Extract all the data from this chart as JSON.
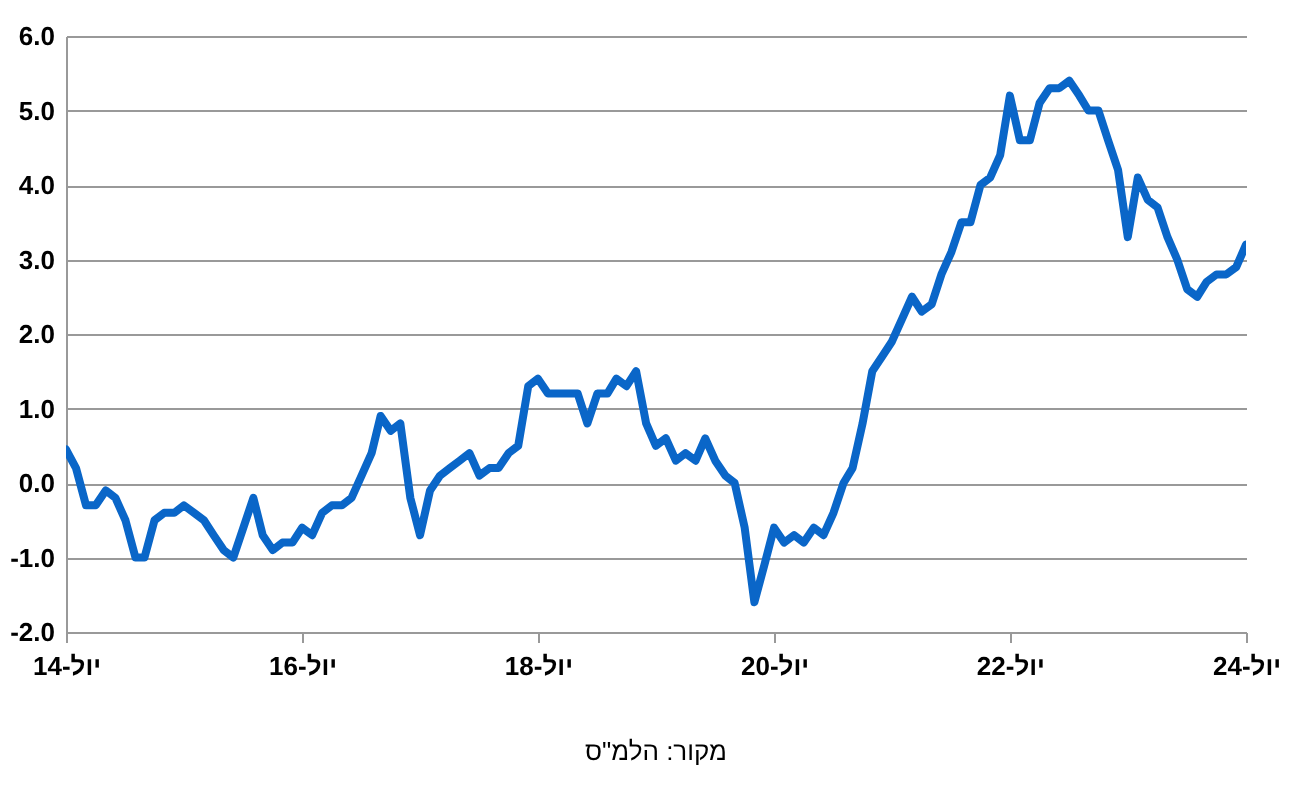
{
  "chart_data": {
    "type": "line",
    "x": [
      "2014-07",
      "2014-08",
      "2014-09",
      "2014-10",
      "2014-11",
      "2014-12",
      "2015-01",
      "2015-02",
      "2015-03",
      "2015-04",
      "2015-05",
      "2015-06",
      "2015-07",
      "2015-08",
      "2015-09",
      "2015-10",
      "2015-11",
      "2015-12",
      "2016-01",
      "2016-02",
      "2016-03",
      "2016-04",
      "2016-05",
      "2016-06",
      "2016-07",
      "2016-08",
      "2016-09",
      "2016-10",
      "2016-11",
      "2016-12",
      "2017-01",
      "2017-02",
      "2017-03",
      "2017-04",
      "2017-05",
      "2017-06",
      "2017-07",
      "2017-08",
      "2017-09",
      "2017-10",
      "2017-11",
      "2017-12",
      "2018-01",
      "2018-02",
      "2018-03",
      "2018-04",
      "2018-05",
      "2018-06",
      "2018-07",
      "2018-08",
      "2018-09",
      "2018-10",
      "2018-11",
      "2018-12",
      "2019-01",
      "2019-02",
      "2019-03",
      "2019-04",
      "2019-05",
      "2019-06",
      "2019-07",
      "2019-08",
      "2019-09",
      "2019-10",
      "2019-11",
      "2019-12",
      "2020-01",
      "2020-02",
      "2020-03",
      "2020-04",
      "2020-05",
      "2020-06",
      "2020-07",
      "2020-08",
      "2020-09",
      "2020-10",
      "2020-11",
      "2020-12",
      "2021-01",
      "2021-02",
      "2021-03",
      "2021-04",
      "2021-05",
      "2021-06",
      "2021-07",
      "2021-08",
      "2021-09",
      "2021-10",
      "2021-11",
      "2021-12",
      "2022-01",
      "2022-02",
      "2022-03",
      "2022-04",
      "2022-05",
      "2022-06",
      "2022-07",
      "2022-08",
      "2022-09",
      "2022-10",
      "2022-11",
      "2022-12",
      "2023-01",
      "2023-02",
      "2023-03",
      "2023-04",
      "2023-05",
      "2023-06",
      "2023-07",
      "2023-08",
      "2023-09",
      "2023-10",
      "2023-11",
      "2023-12",
      "2024-01",
      "2024-02",
      "2024-03",
      "2024-04",
      "2024-05",
      "2024-06",
      "2024-07"
    ],
    "series": [
      {
        "color": "#0a66c8",
        "values": [
          0.45,
          0.2,
          -0.3,
          -0.3,
          -0.1,
          -0.2,
          -0.5,
          -1.0,
          -1.0,
          -0.5,
          -0.4,
          -0.4,
          -0.3,
          -0.4,
          -0.5,
          -0.7,
          -0.9,
          -1.0,
          -0.6,
          -0.2,
          -0.7,
          -0.9,
          -0.8,
          -0.8,
          -0.6,
          -0.7,
          -0.4,
          -0.3,
          -0.3,
          -0.2,
          0.1,
          0.4,
          0.9,
          0.7,
          0.8,
          -0.2,
          -0.7,
          -0.1,
          0.1,
          0.2,
          0.3,
          0.4,
          0.1,
          0.2,
          0.2,
          0.4,
          0.5,
          1.3,
          1.4,
          1.2,
          1.2,
          1.2,
          1.2,
          0.8,
          1.2,
          1.2,
          1.4,
          1.3,
          1.5,
          0.8,
          0.5,
          0.6,
          0.3,
          0.4,
          0.3,
          0.6,
          0.3,
          0.1,
          0.0,
          -0.6,
          -1.6,
          -1.1,
          -0.6,
          -0.8,
          -0.7,
          -0.8,
          -0.6,
          -0.7,
          -0.4,
          0.0,
          0.2,
          0.8,
          1.5,
          1.7,
          1.9,
          2.2,
          2.5,
          2.3,
          2.4,
          2.8,
          3.1,
          3.5,
          3.5,
          4.0,
          4.1,
          4.4,
          5.2,
          4.6,
          4.6,
          5.1,
          5.3,
          5.3,
          5.4,
          5.2,
          5.0,
          5.0,
          4.6,
          4.2,
          3.3,
          4.1,
          3.8,
          3.7,
          3.3,
          3.0,
          2.6,
          2.5,
          2.7,
          2.8,
          2.8,
          2.9,
          3.2
        ]
      }
    ],
    "xlim": [
      "2014-07",
      "2024-07"
    ],
    "xticks": [
      {
        "value": "2014-07",
        "label": "יול-14"
      },
      {
        "value": "2016-07",
        "label": "יול-16"
      },
      {
        "value": "2018-07",
        "label": "יול-18"
      },
      {
        "value": "2020-07",
        "label": "יול-20"
      },
      {
        "value": "2022-07",
        "label": "יול-22"
      },
      {
        "value": "2024-07",
        "label": "יול-24"
      }
    ],
    "ylim": [
      -2,
      6
    ],
    "yticks": [
      {
        "value": -2,
        "label": "-2.0"
      },
      {
        "value": -1,
        "label": "-1.0"
      },
      {
        "value": 0,
        "label": "0.0"
      },
      {
        "value": 1,
        "label": "1.0"
      },
      {
        "value": 2,
        "label": "2.0"
      },
      {
        "value": 3,
        "label": "3.0"
      },
      {
        "value": 4,
        "label": "4.0"
      },
      {
        "value": 5,
        "label": "5.0"
      },
      {
        "value": 6,
        "label": "6.0"
      }
    ],
    "grid": "y",
    "annotations": [
      "מקור: הלמ\"ס"
    ]
  }
}
